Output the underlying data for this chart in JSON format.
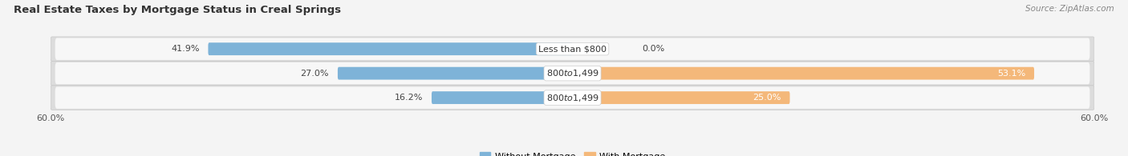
{
  "title": "Real Estate Taxes by Mortgage Status in Creal Springs",
  "source": "Source: ZipAtlas.com",
  "categories": [
    "Less than $800",
    "$800 to $1,499",
    "$800 to $1,499"
  ],
  "without_mortgage": [
    41.9,
    27.0,
    16.2
  ],
  "with_mortgage": [
    0.0,
    53.1,
    25.0
  ],
  "xlim": [
    -60,
    60
  ],
  "color_without": "#7EB3D8",
  "color_with": "#F4B87A",
  "bar_height": 0.52,
  "row_colors": [
    "#FFFFFF",
    "#EBEBEB",
    "#FFFFFF"
  ],
  "row_border": "#CCCCCC",
  "background_fig": "#F4F4F4",
  "title_fontsize": 9.5,
  "label_fontsize": 8.0,
  "pct_fontsize": 8.0,
  "tick_fontsize": 8.0,
  "legend_fontsize": 8.0,
  "source_fontsize": 7.5
}
